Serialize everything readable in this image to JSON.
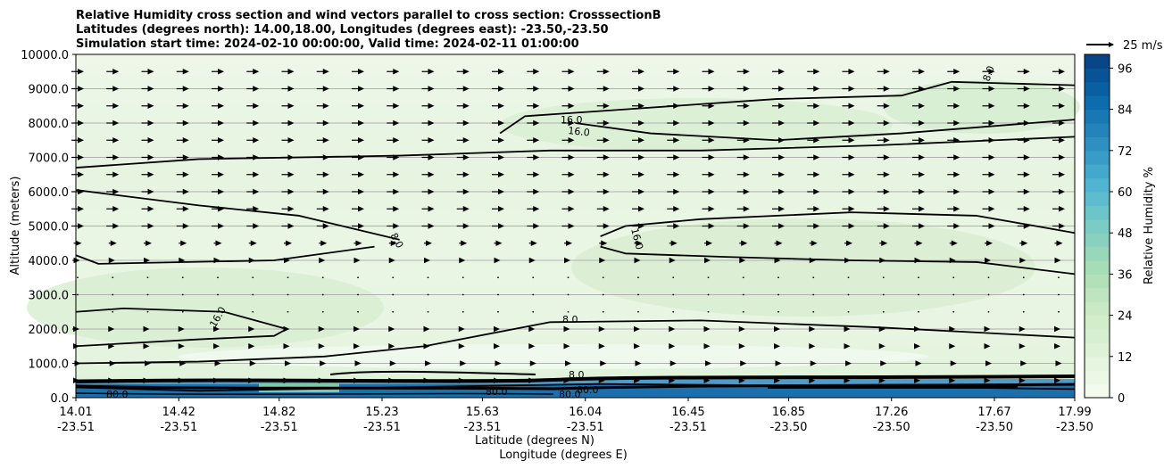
{
  "chart_data": {
    "type": "heatmap",
    "title_lines": [
      "Relative Humidity cross section and wind vectors parallel to cross section: CrosssectionB",
      "Latitudes (degrees north): 14.00,18.00, Longitudes (degrees east): -23.50,-23.50",
      "Simulation start time: 2024-02-10 00:00:00, Valid time: 2024-02-11 01:00:00"
    ],
    "ylabel": "Altitude (meters)",
    "xlabel_lat": "Latitude (degrees N)",
    "xlabel_lon": "Longitude (degrees E)",
    "ylim": [
      0,
      10000
    ],
    "yticks": [
      "0.0",
      "1000.0",
      "2000.0",
      "3000.0",
      "4000.0",
      "5000.0",
      "6000.0",
      "7000.0",
      "8000.0",
      "9000.0",
      "10000.0"
    ],
    "xlim": [
      14.01,
      17.99
    ],
    "x_ticks": [
      {
        "lat": "14.01",
        "lon": "-23.51",
        "value": 14.01
      },
      {
        "lat": "14.42",
        "lon": "-23.51",
        "value": 14.42
      },
      {
        "lat": "14.82",
        "lon": "-23.51",
        "value": 14.82
      },
      {
        "lat": "15.23",
        "lon": "-23.51",
        "value": 15.23
      },
      {
        "lat": "15.63",
        "lon": "-23.51",
        "value": 15.63
      },
      {
        "lat": "16.04",
        "lon": "-23.51",
        "value": 16.04
      },
      {
        "lat": "16.45",
        "lon": "-23.51",
        "value": 16.45
      },
      {
        "lat": "16.85",
        "lon": "-23.50",
        "value": 16.85
      },
      {
        "lat": "17.26",
        "lon": "-23.50",
        "value": 17.26
      },
      {
        "lat": "17.67",
        "lon": "-23.50",
        "value": 17.67
      },
      {
        "lat": "17.99",
        "lon": "-23.50",
        "value": 17.99
      }
    ],
    "colorbar": {
      "label": "Relative Humidity %",
      "min": 0,
      "max": 100,
      "ticks": [
        "0",
        "12",
        "24",
        "36",
        "48",
        "60",
        "72",
        "84",
        "96"
      ],
      "tick_values": [
        0,
        12,
        24,
        36,
        48,
        60,
        72,
        84,
        96
      ],
      "levels": 25
    },
    "reference_vector": {
      "label": "25 m/s",
      "speed": 25
    },
    "contour_labels": [
      "16.0",
      "16.0",
      "8.0",
      "8.0",
      "16.0",
      "16.0",
      "8.0",
      "8.0",
      "80.0",
      "80.0",
      "80.0",
      "80.0"
    ],
    "grid": "horizontal",
    "contours": [
      {
        "label": "1",
        "points": [
          [
            14.01,
            6700
          ],
          [
            14.5,
            6950
          ],
          [
            15.3,
            7050
          ],
          [
            15.9,
            7200
          ],
          [
            16.5,
            7200
          ],
          [
            17.2,
            7350
          ],
          [
            17.99,
            7600
          ]
        ]
      },
      {
        "label": "2",
        "points": [
          [
            14.01,
            6050
          ],
          [
            14.5,
            5600
          ],
          [
            14.9,
            5300
          ],
          [
            15.3,
            4600
          ]
        ]
      },
      {
        "label": "3",
        "points": [
          [
            14.01,
            4150
          ],
          [
            14.1,
            3900
          ],
          [
            14.8,
            4000
          ],
          [
            15.2,
            4400
          ]
        ]
      },
      {
        "label": "4",
        "points": [
          [
            16.1,
            4400
          ],
          [
            16.2,
            4200
          ],
          [
            16.6,
            4100
          ],
          [
            17.1,
            4000
          ],
          [
            17.6,
            3950
          ],
          [
            17.99,
            3600
          ]
        ]
      },
      {
        "label": "5",
        "points": [
          [
            16.1,
            4700
          ],
          [
            16.2,
            5000
          ],
          [
            16.5,
            5200
          ],
          [
            17.1,
            5400
          ],
          [
            17.6,
            5300
          ],
          [
            17.99,
            4800
          ]
        ]
      },
      {
        "label": "6",
        "points": [
          [
            15.7,
            7700
          ],
          [
            15.8,
            8200
          ],
          [
            16.2,
            8400
          ],
          [
            16.8,
            8700
          ],
          [
            17.3,
            8800
          ],
          [
            17.5,
            9200
          ],
          [
            17.99,
            9100
          ]
        ]
      },
      {
        "label": "7",
        "points": [
          [
            16.0,
            8000
          ],
          [
            16.3,
            7700
          ],
          [
            16.8,
            7500
          ],
          [
            17.3,
            7700
          ],
          [
            17.99,
            8100
          ]
        ]
      },
      {
        "label": "8",
        "points": [
          [
            14.01,
            2500
          ],
          [
            14.2,
            2600
          ],
          [
            14.6,
            2500
          ],
          [
            14.85,
            2000
          ],
          [
            14.8,
            1800
          ],
          [
            14.5,
            1700
          ],
          [
            14.01,
            1500
          ]
        ]
      },
      {
        "label": "9",
        "points": [
          [
            14.01,
            1000
          ],
          [
            14.5,
            1050
          ],
          [
            15.0,
            1200
          ],
          [
            15.4,
            1500
          ],
          [
            15.9,
            2200
          ],
          [
            16.5,
            2250
          ],
          [
            17.2,
            2050
          ],
          [
            17.6,
            1900
          ],
          [
            17.99,
            1750
          ]
        ]
      },
      {
        "label": "10",
        "points": [
          [
            14.01,
            300
          ],
          [
            14.5,
            200
          ],
          [
            15.3,
            300
          ],
          [
            16.1,
            400
          ],
          [
            16.9,
            350
          ],
          [
            17.99,
            250
          ]
        ]
      }
    ]
  }
}
